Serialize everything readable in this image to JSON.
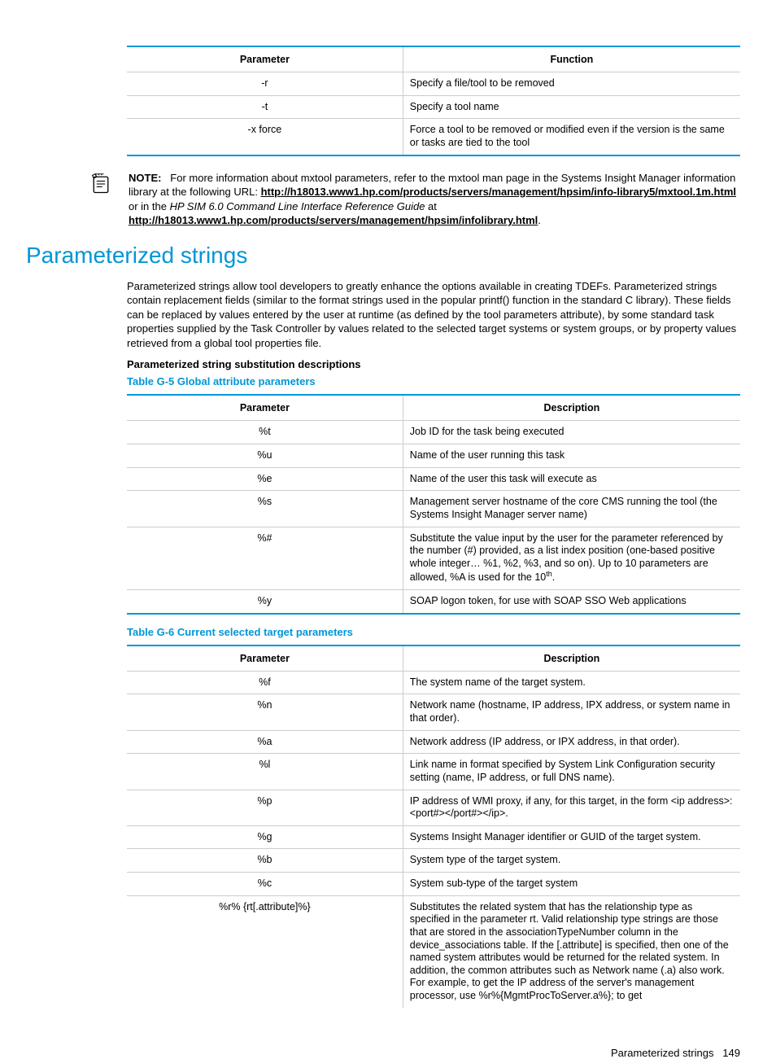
{
  "table1": {
    "col1_header": "Parameter",
    "col2_header": "Function",
    "rows": [
      {
        "p": "-r",
        "f": "Specify a file/tool to be removed"
      },
      {
        "p": "-t",
        "f": "Specify a tool name"
      },
      {
        "p": "-x force",
        "f": "Force a tool to be removed or modified even if the version is the same or tasks are tied to the tool"
      }
    ]
  },
  "note": {
    "label": "NOTE:",
    "lead": "For more information about mxtool parameters, refer to the mxtool man page in the Systems Insight Manager information library at the following URL: ",
    "url1": "http://h18013.www1.hp.com/products/servers/management/hpsim/info-library5/mxtool.1m.html",
    "mid": " or in the ",
    "italic": "HP SIM 6.0 Command Line Interface Reference Guide",
    "at": " at ",
    "url2": "http://h18013.www1.hp.com/products/servers/management/hpsim/infolibrary.html",
    "dot": "."
  },
  "heading": "Parameterized strings",
  "intro": "Parameterized strings allow tool developers to greatly enhance the options available in creating TDEFs. Parameterized strings contain replacement fields (similar to the format strings used in the popular printf() function in the standard C library). These fields can be replaced by values entered by the user at runtime (as defined by the tool parameters attribute), by some standard task properties supplied by the Task Controller by values related to the selected target systems or system groups, or by property values retrieved from a global tool properties file.",
  "subhead": "Parameterized string substitution descriptions",
  "caption_g5": "Table G-5 Global attribute parameters",
  "table_g5": {
    "col1_header": "Parameter",
    "col2_header": "Description",
    "rows": [
      {
        "p": "%t",
        "d": "Job ID for the task being executed"
      },
      {
        "p": "%u",
        "d": "Name of the user running this task"
      },
      {
        "p": "%e",
        "d": "Name of the user this task will execute as"
      },
      {
        "p": "%s",
        "d": "Management server hostname of the core CMS running the tool (the Systems Insight Manager server name)"
      },
      {
        "p": "%#",
        "d": "Substitute the value input by the user for the parameter referenced by the number (#) provided, as a list index position (one-based positive whole integer… %1, %2, %3, and so on). Up to 10 parameters are allowed, %A is used for the 10",
        "sup": "th",
        "tail": "."
      },
      {
        "p": "%y",
        "d": "SOAP logon token, for use with SOAP SSO Web applications"
      }
    ]
  },
  "caption_g6": "Table G-6 Current selected target parameters",
  "table_g6": {
    "col1_header": "Parameter",
    "col2_header": "Description",
    "rows": [
      {
        "p": "%f",
        "d": "The system name of the target system."
      },
      {
        "p": "%n",
        "d": "Network name (hostname, IP address, IPX address, or system name in that order)."
      },
      {
        "p": "%a",
        "d": "Network address (IP address, or IPX address, in that order)."
      },
      {
        "p": "%l",
        "d": "Link name in format specified by System Link Configuration security setting (name, IP address, or full DNS name)."
      },
      {
        "p": "%p",
        "d": "IP address of WMI proxy, if any, for this target, in the form <ip address>:<port#></port#></ip>."
      },
      {
        "p": "%g",
        "d": "Systems Insight Manager identifier or GUID of the target system."
      },
      {
        "p": "%b",
        "d": "System type of the target system."
      },
      {
        "p": "%c",
        "d": "System sub-type of the target system"
      },
      {
        "p": "%r% {rt[.attribute]%}",
        "d": "Substitutes the related system that has the relationship type as specified in the parameter rt. Valid relationship type strings are those that are stored in the associationTypeNumber column in the device_associations table. If the [.attribute] is specified, then one of the named system attributes would be returned for the related system. In addition, the common attributes such as Network name (.a) also work. For example, to get the IP address of the server's management processor, use %r%{MgmtProcToServer.a%}; to get"
      }
    ]
  },
  "footer": {
    "title": "Parameterized strings",
    "page": "149"
  },
  "colors": {
    "accent": "#0096d6",
    "border": "#cccccc",
    "text": "#000000"
  }
}
